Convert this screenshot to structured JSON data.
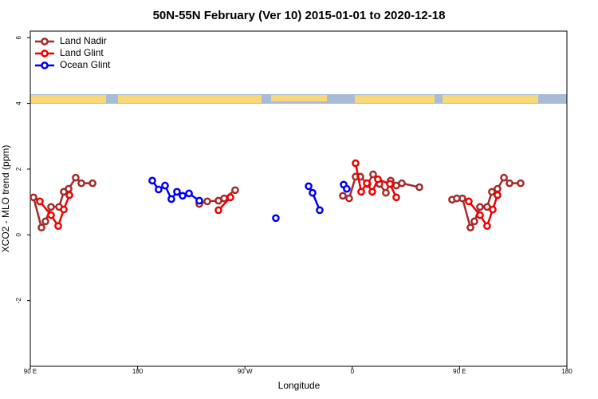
{
  "chart_data": {
    "type": "line",
    "title": "50N-55N February (Ver 10)   2015-01-01 to 2020-12-18",
    "x_label": "Longitude",
    "y_label": "XCO2 - MLO trend (ppm)",
    "xlim": [
      90,
      540
    ],
    "ylim": [
      -4,
      6.2
    ],
    "xticks": [
      {
        "value": 90,
        "label": "90 E"
      },
      180,
      {
        "value": 270,
        "label": "90 W"
      },
      {
        "value": 360,
        "label": "0"
      },
      {
        "value": 450,
        "label": "90 E"
      },
      {
        "value": 540,
        "label": "180"
      }
    ],
    "yticks": [
      -2,
      0,
      2,
      4,
      6
    ],
    "legend": "top-left",
    "series": [
      {
        "name": "Land Nadir",
        "color": "#a52a2a",
        "x": [
          92.7,
          99.4,
          102.7,
          107.4,
          114.1,
          118.1,
          122.1,
          128.1,
          132.8,
          142.2,
          null,
          231.7,
          238.4,
          247.8,
          252.5,
          261.8,
          null,
          352.1,
          357.4,
          362.8,
          366.8,
          372.8,
          377.5,
          382.8,
          388.2,
          392.2,
          396.9,
          401.6,
          416.3,
          null,
          443.7,
          447.7,
          452.4,
          459.1,
          462.4,
          467.1,
          473.1,
          477.1,
          481.8,
          487.2,
          491.9,
          501.2
        ],
        "values": [
          1.14,
          0.22,
          0.41,
          0.85,
          0.85,
          1.31,
          1.4,
          1.74,
          1.57,
          1.57,
          null,
          0.94,
          1.02,
          1.04,
          1.11,
          1.36,
          null,
          1.19,
          1.11,
          1.77,
          1.77,
          1.55,
          1.84,
          1.55,
          1.28,
          1.65,
          1.5,
          1.57,
          1.45,
          null,
          1.07,
          1.11,
          1.11,
          0.22,
          0.41,
          0.85,
          0.85,
          1.31,
          1.4,
          1.74,
          1.57,
          1.57
        ]
      },
      {
        "name": "Land Glint",
        "color": "#ee0000",
        "x": [
          98.0,
          107.4,
          113.4,
          118.1,
          122.8,
          null,
          247.8,
          257.8,
          null,
          362.8,
          367.5,
          372.2,
          376.8,
          381.5,
          391.6,
          396.9,
          null,
          457.7,
          467.1,
          473.1,
          477.8,
          481.8
        ],
        "values": [
          1.02,
          0.6,
          0.27,
          0.77,
          1.21,
          null,
          0.75,
          1.14,
          null,
          2.18,
          1.31,
          1.57,
          1.31,
          1.69,
          1.55,
          1.14,
          null,
          1.02,
          0.6,
          0.27,
          0.77,
          1.21
        ]
      },
      {
        "name": "Ocean Glint",
        "color": "#0000ee",
        "x": [
          192.3,
          197.6,
          203.0,
          208.3,
          213.0,
          217.7,
          223.1,
          231.7,
          null,
          295.9,
          null,
          323.4,
          326.7,
          332.7,
          null,
          352.8,
          355.4
        ],
        "values": [
          1.65,
          1.38,
          1.5,
          1.09,
          1.31,
          1.19,
          1.26,
          1.04,
          null,
          0.51,
          null,
          1.48,
          1.28,
          0.75,
          null,
          1.53,
          1.4
        ]
      }
    ]
  }
}
